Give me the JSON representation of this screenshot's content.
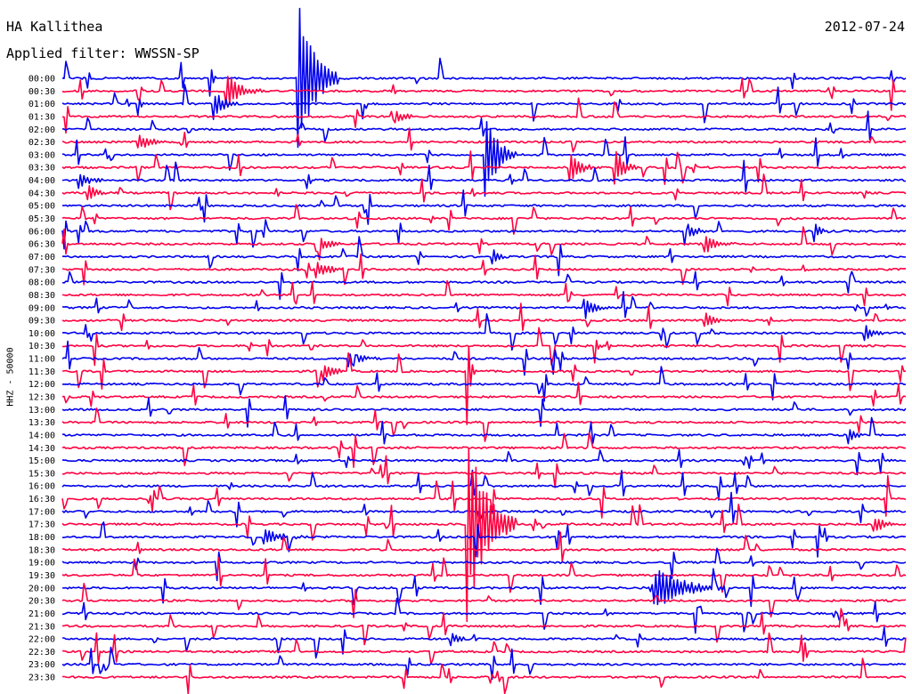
{
  "header": {
    "station": "HA Kallithea",
    "date": "2012-07-24",
    "filter": "Applied filter: WWSSN-SP"
  },
  "chart_data": {
    "type": "line",
    "title": "HA Kallithea",
    "subtitle": "Applied filter: WWSSN-SP",
    "date": "2012-07-24",
    "ylabel": "HHZ - 50000",
    "xlabel": "",
    "grid": false,
    "trace_colors": [
      "#0000ee",
      "#ff0040"
    ],
    "row_labels": [
      "00:00",
      "00:30",
      "01:00",
      "01:30",
      "02:00",
      "02:30",
      "03:00",
      "03:30",
      "04:00",
      "04:30",
      "05:00",
      "05:30",
      "06:00",
      "06:30",
      "07:00",
      "07:30",
      "08:00",
      "08:30",
      "09:00",
      "09:30",
      "10:00",
      "10:30",
      "11:00",
      "11:30",
      "12:00",
      "12:30",
      "13:00",
      "13:30",
      "14:00",
      "14:30",
      "15:00",
      "15:30",
      "16:00",
      "16:30",
      "17:00",
      "17:30",
      "18:00",
      "18:30",
      "19:00",
      "19:30",
      "20:00",
      "20:30",
      "21:00",
      "21:30",
      "22:00",
      "22:30",
      "23:00",
      "23:30"
    ],
    "events": [
      {
        "row": 0,
        "x_fraction": 0.175,
        "amplitude": 30,
        "duration_fraction": 0.03,
        "kind": "spike"
      },
      {
        "row": 0,
        "x_fraction": 0.28,
        "amplitude": 95,
        "duration_fraction": 0.05,
        "kind": "quake"
      },
      {
        "row": 1,
        "x_fraction": 0.195,
        "amplitude": 20,
        "duration_fraction": 0.05,
        "kind": "quake"
      },
      {
        "row": 2,
        "x_fraction": 0.09,
        "amplitude": 15,
        "duration_fraction": 0.02,
        "kind": "spike"
      },
      {
        "row": 2,
        "x_fraction": 0.18,
        "amplitude": 18,
        "duration_fraction": 0.03,
        "kind": "quake"
      },
      {
        "row": 3,
        "x_fraction": 0.39,
        "amplitude": 12,
        "duration_fraction": 0.03,
        "kind": "quake"
      },
      {
        "row": 5,
        "x_fraction": 0.09,
        "amplitude": 10,
        "duration_fraction": 0.04,
        "kind": "quake"
      },
      {
        "row": 6,
        "x_fraction": 0.5,
        "amplitude": 55,
        "duration_fraction": 0.04,
        "kind": "quake"
      },
      {
        "row": 7,
        "x_fraction": 0.6,
        "amplitude": 25,
        "duration_fraction": 0.03,
        "kind": "quake"
      },
      {
        "row": 7,
        "x_fraction": 0.655,
        "amplitude": 22,
        "duration_fraction": 0.03,
        "kind": "quake"
      },
      {
        "row": 8,
        "x_fraction": 0.02,
        "amplitude": 12,
        "duration_fraction": 0.03,
        "kind": "quake"
      },
      {
        "row": 8,
        "x_fraction": 0.29,
        "amplitude": 15,
        "duration_fraction": 0.03,
        "kind": "spike"
      },
      {
        "row": 9,
        "x_fraction": 0.03,
        "amplitude": 10,
        "duration_fraction": 0.03,
        "kind": "quake"
      },
      {
        "row": 12,
        "x_fraction": 0.74,
        "amplitude": 10,
        "duration_fraction": 0.03,
        "kind": "quake"
      },
      {
        "row": 12,
        "x_fraction": 0.89,
        "amplitude": 12,
        "duration_fraction": 0.02,
        "kind": "quake"
      },
      {
        "row": 13,
        "x_fraction": 0.3,
        "amplitude": 14,
        "duration_fraction": 0.03,
        "kind": "quake"
      },
      {
        "row": 13,
        "x_fraction": 0.76,
        "amplitude": 12,
        "duration_fraction": 0.04,
        "kind": "quake"
      },
      {
        "row": 14,
        "x_fraction": 0.51,
        "amplitude": 12,
        "duration_fraction": 0.02,
        "kind": "quake"
      },
      {
        "row": 15,
        "x_fraction": 0.3,
        "amplitude": 10,
        "duration_fraction": 0.04,
        "kind": "quake"
      },
      {
        "row": 18,
        "x_fraction": 0.62,
        "amplitude": 10,
        "duration_fraction": 0.03,
        "kind": "quake"
      },
      {
        "row": 19,
        "x_fraction": 0.76,
        "amplitude": 10,
        "duration_fraction": 0.03,
        "kind": "quake"
      },
      {
        "row": 20,
        "x_fraction": 0.95,
        "amplitude": 10,
        "duration_fraction": 0.03,
        "kind": "quake"
      },
      {
        "row": 21,
        "x_fraction": 0.63,
        "amplitude": 22,
        "duration_fraction": 0.02,
        "kind": "spike"
      },
      {
        "row": 22,
        "x_fraction": 0.34,
        "amplitude": 10,
        "duration_fraction": 0.04,
        "kind": "quake"
      },
      {
        "row": 23,
        "x_fraction": 0.31,
        "amplitude": 10,
        "duration_fraction": 0.04,
        "kind": "quake"
      },
      {
        "row": 23,
        "x_fraction": 0.48,
        "amplitude": 95,
        "duration_fraction": 0.02,
        "kind": "spike"
      },
      {
        "row": 28,
        "x_fraction": 0.93,
        "amplitude": 12,
        "duration_fraction": 0.02,
        "kind": "quake"
      },
      {
        "row": 35,
        "x_fraction": 0.48,
        "amplitude": 110,
        "duration_fraction": 0.06,
        "kind": "quake"
      },
      {
        "row": 35,
        "x_fraction": 0.96,
        "amplitude": 12,
        "duration_fraction": 0.03,
        "kind": "quake"
      },
      {
        "row": 36,
        "x_fraction": 0.24,
        "amplitude": 10,
        "duration_fraction": 0.05,
        "kind": "quake"
      },
      {
        "row": 40,
        "x_fraction": 0.7,
        "amplitude": 25,
        "duration_fraction": 0.09,
        "kind": "quake"
      },
      {
        "row": 42,
        "x_fraction": 0.75,
        "amplitude": 25,
        "duration_fraction": 0.02,
        "kind": "spike"
      },
      {
        "row": 44,
        "x_fraction": 0.46,
        "amplitude": 10,
        "duration_fraction": 0.02,
        "kind": "quake"
      }
    ]
  }
}
